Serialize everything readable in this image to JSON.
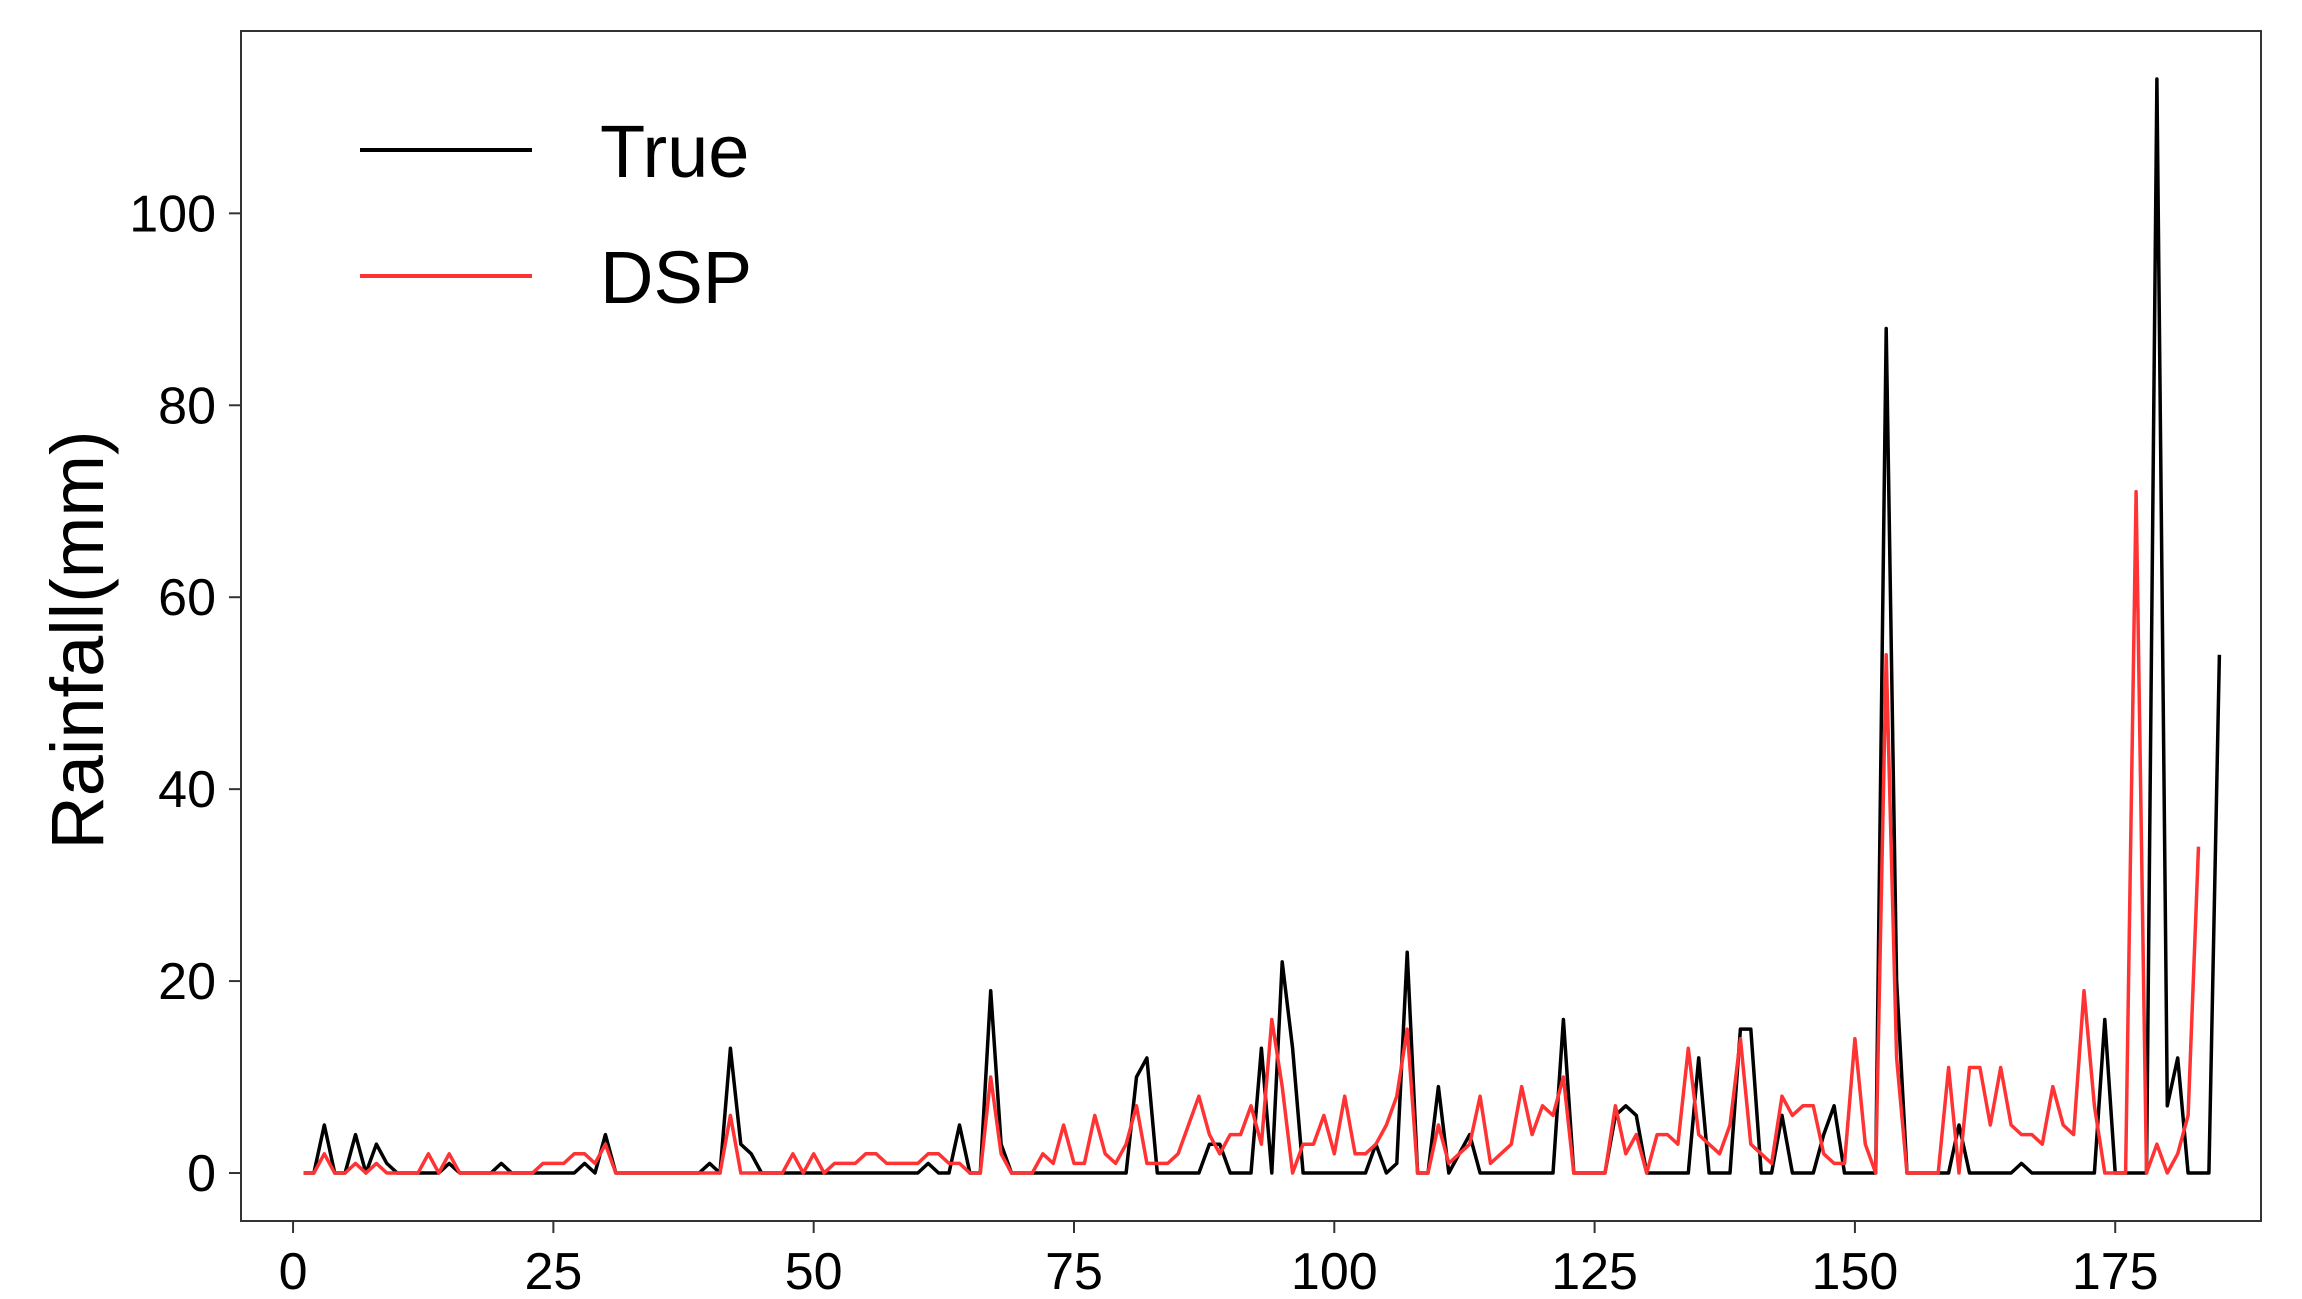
{
  "chart_data": {
    "type": "line",
    "title": "",
    "xlabel": "",
    "ylabel": "Rainfall(mm)",
    "xlim": [
      -5,
      189
    ],
    "ylim": [
      -5,
      119
    ],
    "xticks": [
      0,
      25,
      50,
      75,
      100,
      125,
      150,
      175
    ],
    "yticks": [
      0,
      20,
      40,
      60,
      80,
      100
    ],
    "grid": false,
    "legend_position": "top-left",
    "x_start": 1,
    "series": [
      {
        "name": "True",
        "color": "#000000",
        "values": [
          0,
          0,
          5,
          0,
          0,
          4,
          0,
          3,
          1,
          0,
          0,
          0,
          0,
          0,
          1,
          0,
          0,
          0,
          0,
          1,
          0,
          0,
          0,
          0,
          0,
          0,
          0,
          1,
          0,
          4,
          0,
          0,
          0,
          0,
          0,
          0,
          0,
          0,
          0,
          1,
          0,
          13,
          3,
          2,
          0,
          0,
          0,
          0,
          0,
          0,
          0,
          0,
          0,
          0,
          0,
          0,
          0,
          0,
          0,
          0,
          1,
          0,
          0,
          5,
          0,
          0,
          19,
          3,
          0,
          0,
          0,
          0,
          0,
          0,
          0,
          0,
          0,
          0,
          0,
          0,
          10,
          12,
          0,
          0,
          0,
          0,
          0,
          3,
          3,
          0,
          0,
          0,
          13,
          0,
          22,
          13,
          0,
          0,
          0,
          0,
          0,
          0,
          0,
          3,
          0,
          1,
          23,
          0,
          0,
          9,
          0,
          2,
          4,
          0,
          0,
          0,
          0,
          0,
          0,
          0,
          0,
          16,
          0,
          0,
          0,
          0,
          6,
          7,
          6,
          0,
          0,
          0,
          0,
          0,
          12,
          0,
          0,
          0,
          15,
          15,
          0,
          0,
          6,
          0,
          0,
          0,
          4,
          7,
          0,
          0,
          0,
          0,
          88,
          20,
          0,
          0,
          0,
          0,
          0,
          5,
          0,
          0,
          0,
          0,
          0,
          1,
          0,
          0,
          0,
          0,
          0,
          0,
          0,
          16,
          0,
          0,
          0,
          0,
          114,
          7,
          12,
          0,
          0,
          0,
          54
        ]
      },
      {
        "name": "DSP",
        "color": "#ff3333",
        "values": [
          0,
          0,
          2,
          0,
          0,
          1,
          0,
          1,
          0,
          0,
          0,
          0,
          2,
          0,
          2,
          0,
          0,
          0,
          0,
          0,
          0,
          0,
          0,
          1,
          1,
          1,
          2,
          2,
          1,
          3,
          0,
          0,
          0,
          0,
          0,
          0,
          0,
          0,
          0,
          0,
          0,
          6,
          0,
          0,
          0,
          0,
          0,
          2,
          0,
          2,
          0,
          1,
          1,
          1,
          2,
          2,
          1,
          1,
          1,
          1,
          2,
          2,
          1,
          1,
          0,
          0,
          10,
          2,
          0,
          0,
          0,
          2,
          1,
          5,
          1,
          1,
          6,
          2,
          1,
          3,
          7,
          1,
          1,
          1,
          2,
          5,
          8,
          4,
          2,
          4,
          4,
          7,
          3,
          16,
          9,
          0,
          3,
          3,
          6,
          2,
          8,
          2,
          2,
          3,
          5,
          8,
          15,
          0,
          0,
          5,
          1,
          2,
          3,
          8,
          1,
          2,
          3,
          9,
          4,
          7,
          6,
          10,
          0,
          0,
          0,
          0,
          7,
          2,
          4,
          0,
          4,
          4,
          3,
          13,
          4,
          3,
          2,
          5,
          14,
          3,
          2,
          1,
          8,
          6,
          7,
          7,
          2,
          1,
          1,
          14,
          3,
          0,
          54,
          12,
          0,
          0,
          0,
          0,
          11,
          0,
          11,
          11,
          5,
          11,
          5,
          4,
          4,
          3,
          9,
          5,
          4,
          19,
          7,
          0,
          0,
          0,
          71,
          0,
          3,
          0,
          2,
          6,
          34
        ]
      }
    ]
  }
}
